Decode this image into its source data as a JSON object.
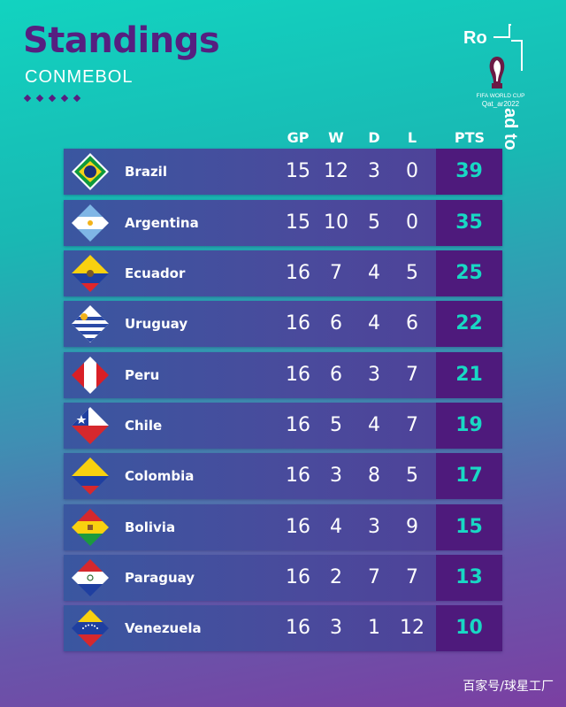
{
  "header": {
    "title": "Standings",
    "subtitle": "CONMEBOL"
  },
  "logo": {
    "ro": "Ro",
    "adto": "ad to",
    "fifa_line": "FIFA WORLD CUP",
    "qatar_line": "Qat_ar2022"
  },
  "columns": {
    "gp": "GP",
    "w": "W",
    "d": "D",
    "l": "L",
    "pts": "PTS"
  },
  "teams": [
    {
      "name": "Brazil",
      "flag": "brazil-flag-icon",
      "gp": "15",
      "w": "12",
      "d": "3",
      "l": "0",
      "pts": "39"
    },
    {
      "name": "Argentina",
      "flag": "argentina-flag-icon",
      "gp": "15",
      "w": "10",
      "d": "5",
      "l": "0",
      "pts": "35"
    },
    {
      "name": "Ecuador",
      "flag": "ecuador-flag-icon",
      "gp": "16",
      "w": "7",
      "d": "4",
      "l": "5",
      "pts": "25"
    },
    {
      "name": "Uruguay",
      "flag": "uruguay-flag-icon",
      "gp": "16",
      "w": "6",
      "d": "4",
      "l": "6",
      "pts": "22"
    },
    {
      "name": "Peru",
      "flag": "peru-flag-icon",
      "gp": "16",
      "w": "6",
      "d": "3",
      "l": "7",
      "pts": "21"
    },
    {
      "name": "Chile",
      "flag": "chile-flag-icon",
      "gp": "16",
      "w": "5",
      "d": "4",
      "l": "7",
      "pts": "19"
    },
    {
      "name": "Colombia",
      "flag": "colombia-flag-icon",
      "gp": "16",
      "w": "3",
      "d": "8",
      "l": "5",
      "pts": "17"
    },
    {
      "name": "Bolivia",
      "flag": "bolivia-flag-icon",
      "gp": "16",
      "w": "4",
      "d": "3",
      "l": "9",
      "pts": "15"
    },
    {
      "name": "Paraguay",
      "flag": "paraguay-flag-icon",
      "gp": "16",
      "w": "2",
      "d": "7",
      "l": "7",
      "pts": "13"
    },
    {
      "name": "Venezuela",
      "flag": "venezuela-flag-icon",
      "gp": "16",
      "w": "3",
      "d": "1",
      "l": "12",
      "pts": "10"
    }
  ],
  "colors": {
    "accent_purple": "#561f80",
    "pts_text": "#18d8c4",
    "pts_box": "#4e1a7c"
  },
  "watermark": "百家号/球星工厂"
}
